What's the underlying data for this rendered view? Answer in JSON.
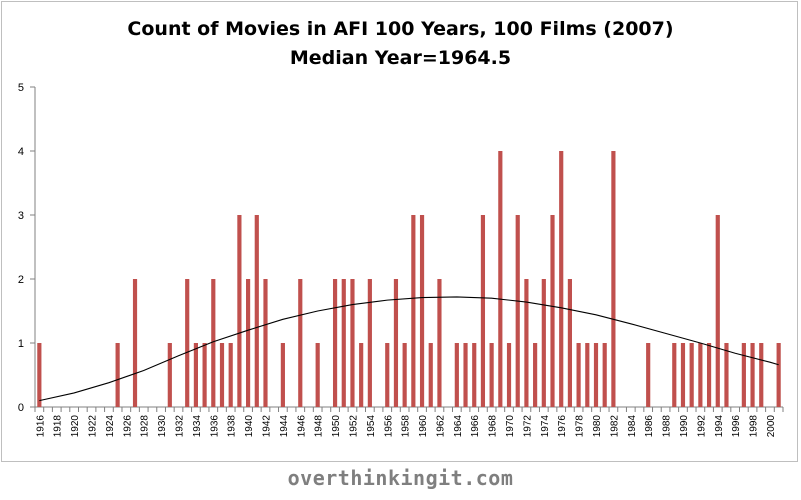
{
  "chart_data": {
    "type": "bar",
    "title": "Count of Movies in AFI 100 Years, 100 Films (2007)",
    "subtitle": "Median Year=1964.5",
    "xlabel": "",
    "ylabel": "",
    "x_start": 1916,
    "x_end": 2001,
    "x_tick_labels": [
      "1916",
      "1918",
      "1920",
      "1922",
      "1924",
      "1926",
      "1928",
      "1930",
      "1932",
      "1934",
      "1936",
      "1938",
      "1940",
      "1942",
      "1944",
      "1946",
      "1948",
      "1950",
      "1952",
      "1954",
      "1956",
      "1958",
      "1960",
      "1962",
      "1964",
      "1966",
      "1968",
      "1970",
      "1972",
      "1974",
      "1976",
      "1978",
      "1980",
      "1982",
      "1984",
      "1986",
      "1988",
      "1990",
      "1992",
      "1994",
      "1996",
      "1998",
      "2000"
    ],
    "ylim": [
      0,
      5
    ],
    "y_ticks": [
      0,
      1,
      2,
      3,
      4,
      5
    ],
    "grid": false,
    "bar_color": "#c0504d",
    "curve_color": "#000000",
    "series": [
      {
        "type": "bar",
        "points": [
          [
            1916,
            1
          ],
          [
            1925,
            1
          ],
          [
            1927,
            2
          ],
          [
            1931,
            1
          ],
          [
            1933,
            2
          ],
          [
            1934,
            1
          ],
          [
            1935,
            1
          ],
          [
            1936,
            2
          ],
          [
            1937,
            1
          ],
          [
            1938,
            1
          ],
          [
            1939,
            3
          ],
          [
            1940,
            2
          ],
          [
            1941,
            3
          ],
          [
            1942,
            2
          ],
          [
            1944,
            1
          ],
          [
            1946,
            2
          ],
          [
            1948,
            1
          ],
          [
            1950,
            2
          ],
          [
            1951,
            2
          ],
          [
            1952,
            2
          ],
          [
            1953,
            1
          ],
          [
            1954,
            2
          ],
          [
            1956,
            1
          ],
          [
            1957,
            2
          ],
          [
            1958,
            1
          ],
          [
            1959,
            3
          ],
          [
            1960,
            3
          ],
          [
            1961,
            1
          ],
          [
            1962,
            2
          ],
          [
            1964,
            1
          ],
          [
            1965,
            1
          ],
          [
            1966,
            1
          ],
          [
            1967,
            3
          ],
          [
            1968,
            1
          ],
          [
            1969,
            4
          ],
          [
            1970,
            1
          ],
          [
            1971,
            3
          ],
          [
            1972,
            2
          ],
          [
            1973,
            1
          ],
          [
            1974,
            2
          ],
          [
            1975,
            3
          ],
          [
            1976,
            4
          ],
          [
            1977,
            2
          ],
          [
            1978,
            1
          ],
          [
            1979,
            1
          ],
          [
            1980,
            1
          ],
          [
            1981,
            1
          ],
          [
            1982,
            4
          ],
          [
            1986,
            1
          ],
          [
            1989,
            1
          ],
          [
            1990,
            1
          ],
          [
            1991,
            1
          ],
          [
            1992,
            1
          ],
          [
            1993,
            1
          ],
          [
            1994,
            3
          ],
          [
            1995,
            1
          ],
          [
            1997,
            1
          ],
          [
            1998,
            1
          ],
          [
            1999,
            1
          ],
          [
            2001,
            1
          ]
        ]
      },
      {
        "type": "line",
        "points": [
          [
            1916,
            0.1
          ],
          [
            1920,
            0.22
          ],
          [
            1924,
            0.38
          ],
          [
            1928,
            0.57
          ],
          [
            1932,
            0.8
          ],
          [
            1936,
            1.02
          ],
          [
            1940,
            1.2
          ],
          [
            1944,
            1.37
          ],
          [
            1948,
            1.5
          ],
          [
            1952,
            1.6
          ],
          [
            1956,
            1.67
          ],
          [
            1960,
            1.71
          ],
          [
            1964,
            1.72
          ],
          [
            1968,
            1.7
          ],
          [
            1972,
            1.64
          ],
          [
            1976,
            1.55
          ],
          [
            1980,
            1.44
          ],
          [
            1984,
            1.3
          ],
          [
            1988,
            1.15
          ],
          [
            1992,
            1.0
          ],
          [
            1996,
            0.84
          ],
          [
            2000,
            0.7
          ],
          [
            2001,
            0.66
          ]
        ]
      }
    ]
  },
  "watermark": "overthinkingit.com"
}
